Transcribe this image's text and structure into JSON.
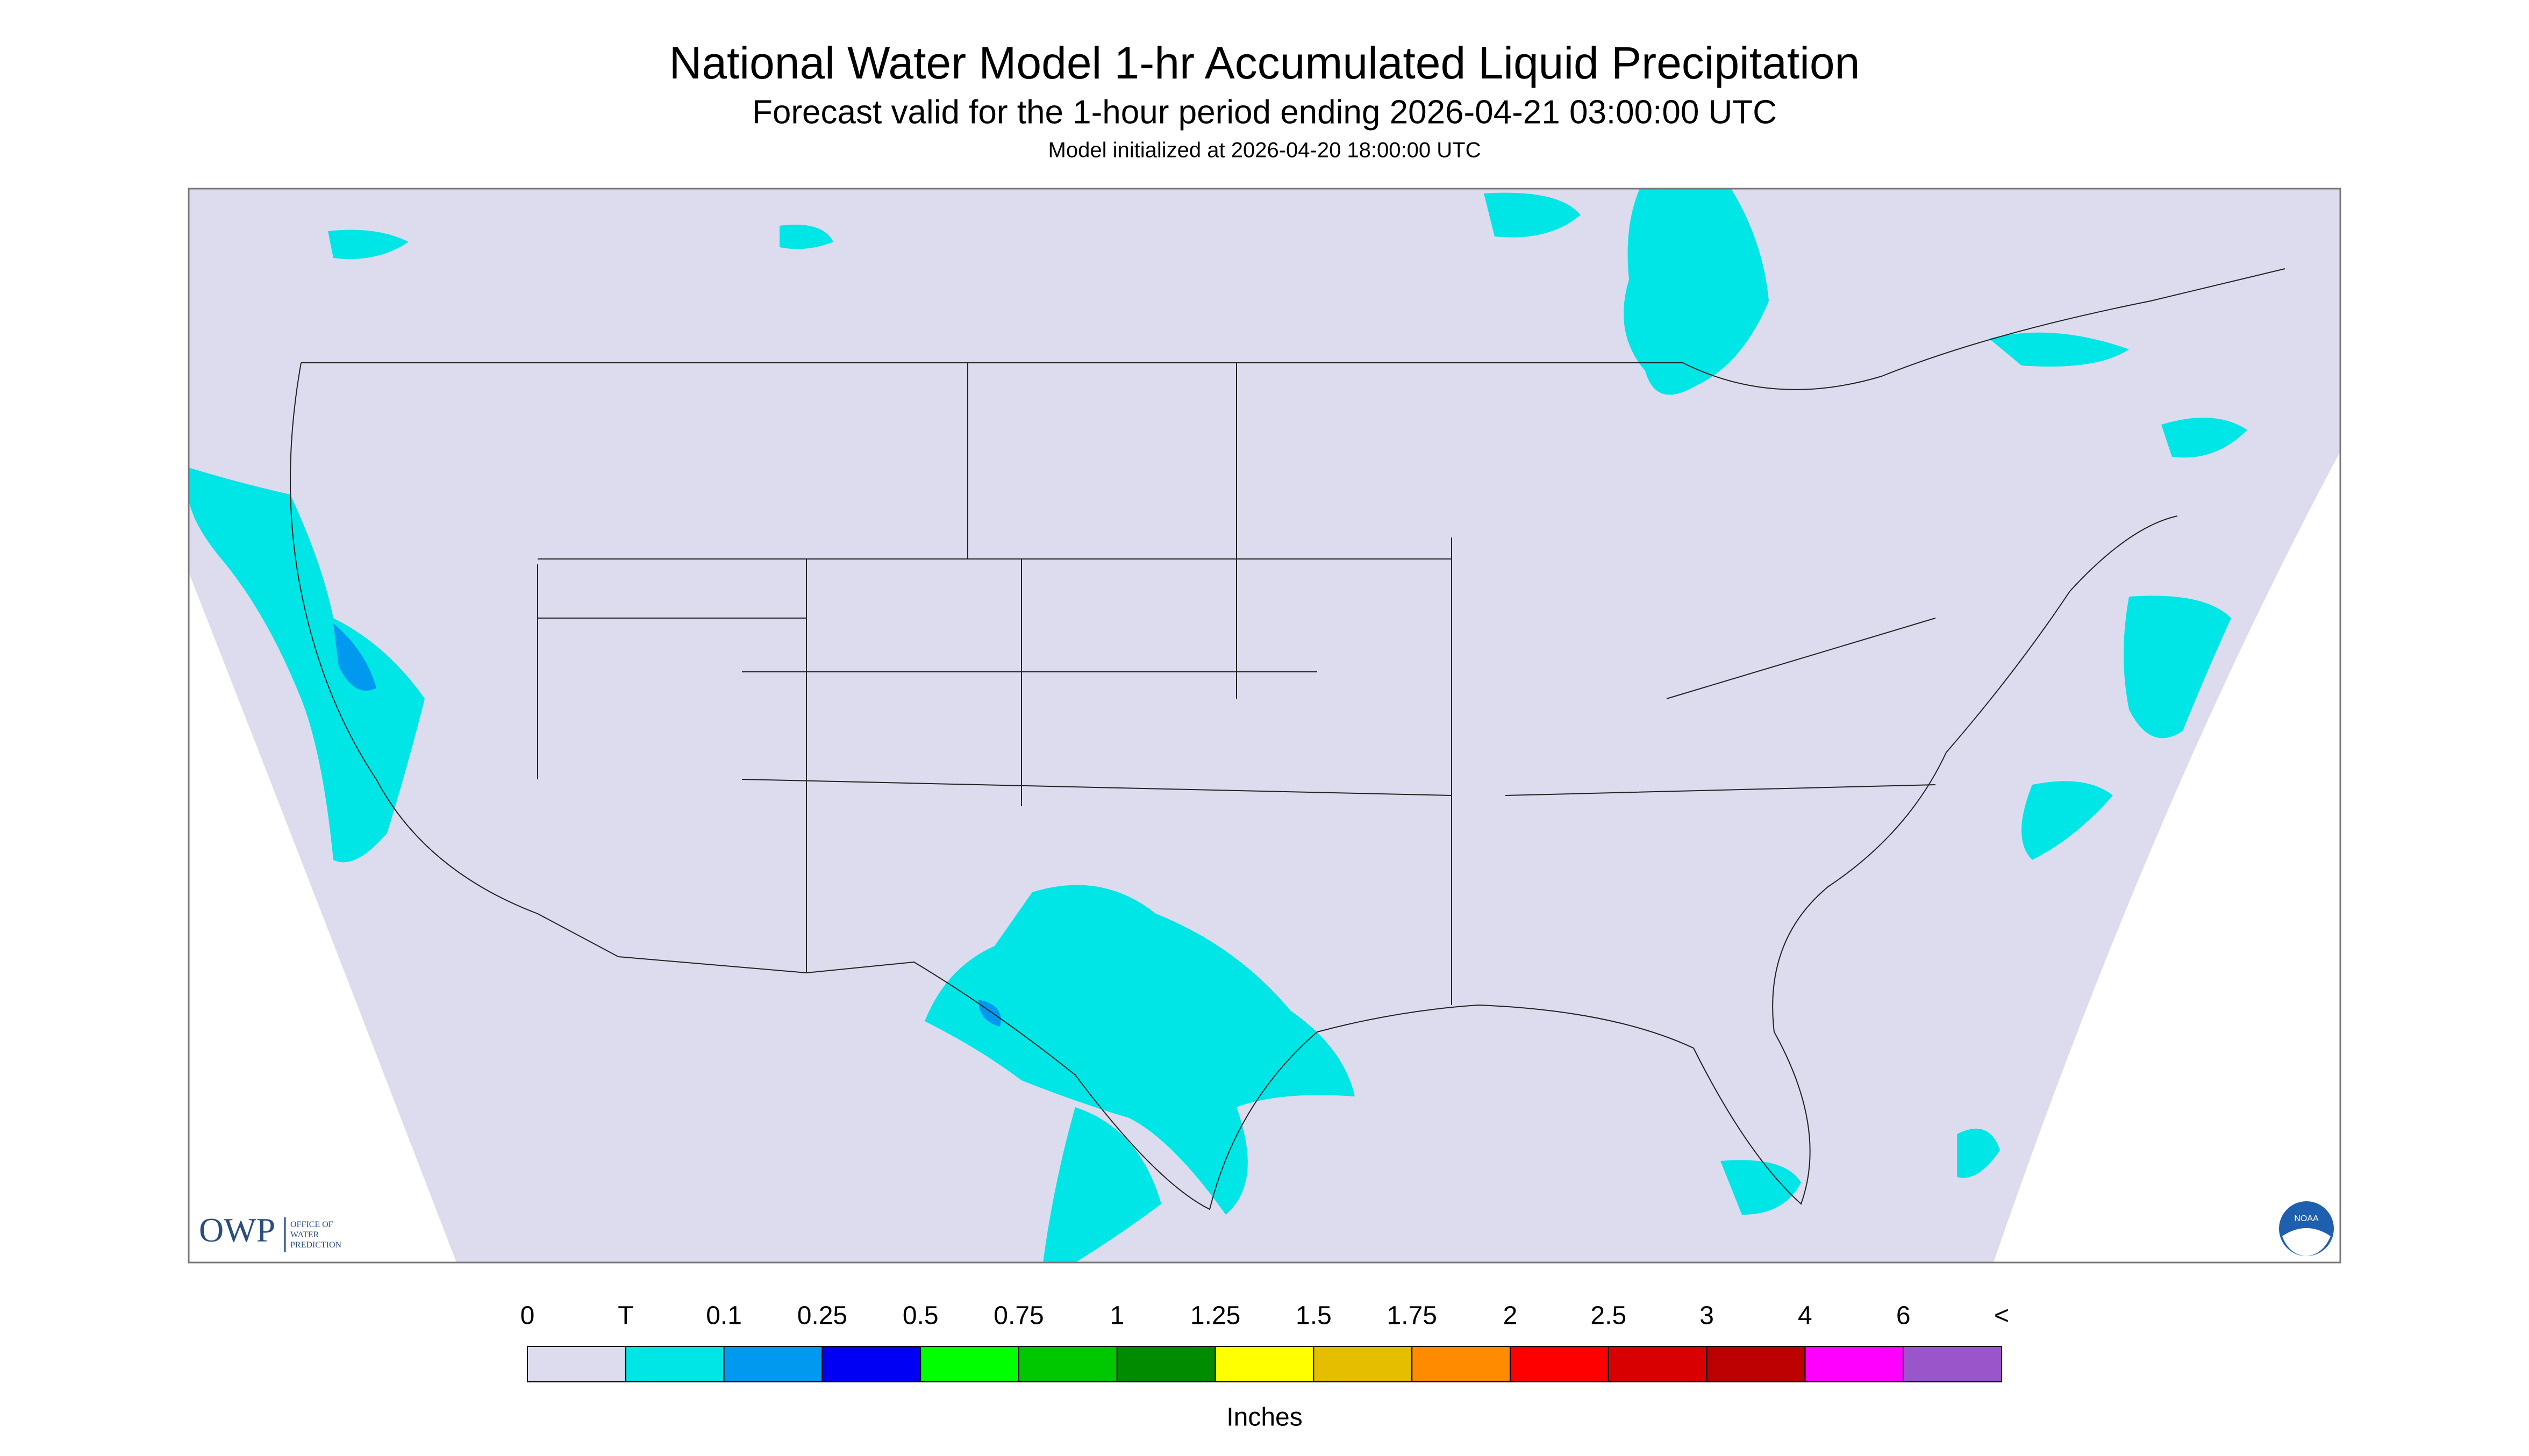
{
  "header": {
    "title": "National Water Model 1-hr Accumulated Liquid Precipitation",
    "subtitle": "Forecast valid for the 1-hour period ending 2026-04-21 03:00:00 UTC",
    "model_init": "Model initialized at 2026-04-20 18:00:00 UTC"
  },
  "legend": {
    "labels": [
      "0",
      "T",
      "0.1",
      "0.25",
      "0.5",
      "0.75",
      "1",
      "1.25",
      "1.5",
      "1.75",
      "2",
      "2.5",
      "3",
      "4",
      "6",
      "<"
    ],
    "colors": [
      "#dcdcee",
      "#00e5e5",
      "#0099f0",
      "#0000f5",
      "#00ff00",
      "#00c800",
      "#008c00",
      "#ffff00",
      "#e6be00",
      "#ff8c00",
      "#ff0000",
      "#d80000",
      "#bc0000",
      "#ff00ff",
      "#9955c9"
    ],
    "units": "Inches"
  },
  "logos": {
    "owp": "OWP",
    "owp_line1": "OFFICE OF",
    "owp_line2": "WATER",
    "owp_line3": "PREDICTION",
    "noaa": "NOAA"
  }
}
